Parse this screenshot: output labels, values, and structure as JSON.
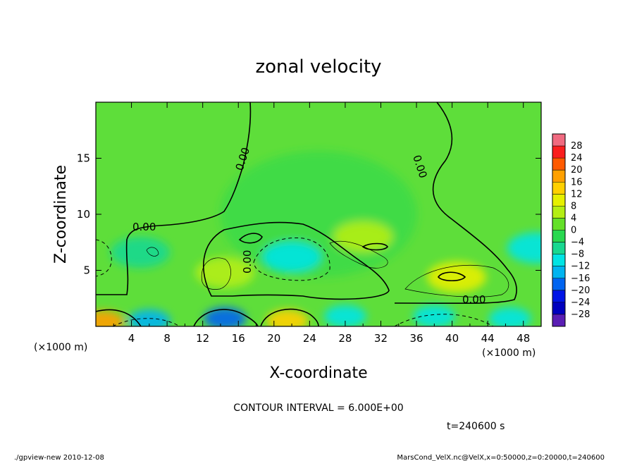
{
  "chart_data": {
    "type": "heatmap",
    "title": "zonal velocity",
    "xlabel": "X-coordinate",
    "ylabel": "Z-coordinate",
    "x_unit": "(×1000 m)",
    "y_unit": "(×1000 m)",
    "xlim": [
      0,
      50
    ],
    "ylim": [
      0,
      20
    ],
    "x_ticks": [
      "4",
      "8",
      "12",
      "16",
      "20",
      "24",
      "28",
      "32",
      "36",
      "40",
      "44",
      "48"
    ],
    "y_ticks": [
      "5",
      "10",
      "15"
    ],
    "contour_interval_text": "CONTOUR INTERVAL = 6.000E+00",
    "contour_labels": [
      "0.00",
      "0.00",
      "0.00",
      "0.00",
      "0.00"
    ],
    "colorbar": {
      "ticks": [
        "28",
        "24",
        "20",
        "16",
        "12",
        "8",
        "4",
        "0",
        "−4",
        "−8",
        "−12",
        "−16",
        "−20",
        "−24",
        "−28"
      ],
      "colors": [
        "#f06a80",
        "#fa1e1e",
        "#ff5a00",
        "#ffa000",
        "#ffd000",
        "#e6f000",
        "#b4ee14",
        "#64e028",
        "#28d850",
        "#18d890",
        "#00e4e4",
        "#00b4f0",
        "#0064f0",
        "#0014e6",
        "#0000be",
        "#5a1eb4"
      ]
    },
    "time_label": "t=240600 s",
    "footer_left": "./gpview-new  2010-12-08",
    "footer_right": "MarsCond_VelX.nc@VelX,x=0:50000,z=0:20000,t=240600",
    "blobs": [
      {
        "x": 25,
        "z": 10,
        "v": 0
      },
      {
        "x": 22,
        "z": 6.2,
        "v": -10
      },
      {
        "x": 14.5,
        "z": 4.8,
        "v": 7
      },
      {
        "x": 40.5,
        "z": 4.4,
        "v": 10
      },
      {
        "x": 30,
        "z": 8.0,
        "v": 5
      },
      {
        "x": 5,
        "z": 6.6,
        "v": -6
      },
      {
        "x": 49.5,
        "z": 7,
        "v": -7
      },
      {
        "x": 0.8,
        "z": 0.4,
        "v": 16
      },
      {
        "x": 6,
        "z": 0.5,
        "v": -12
      },
      {
        "x": 14.5,
        "z": 0.7,
        "v": -14
      },
      {
        "x": 21.5,
        "z": 0.5,
        "v": 14
      },
      {
        "x": 28,
        "z": 0.9,
        "v": -10
      },
      {
        "x": 38,
        "z": 0.9,
        "v": -10
      },
      {
        "x": 46.5,
        "z": 0.7,
        "v": -8
      }
    ]
  }
}
